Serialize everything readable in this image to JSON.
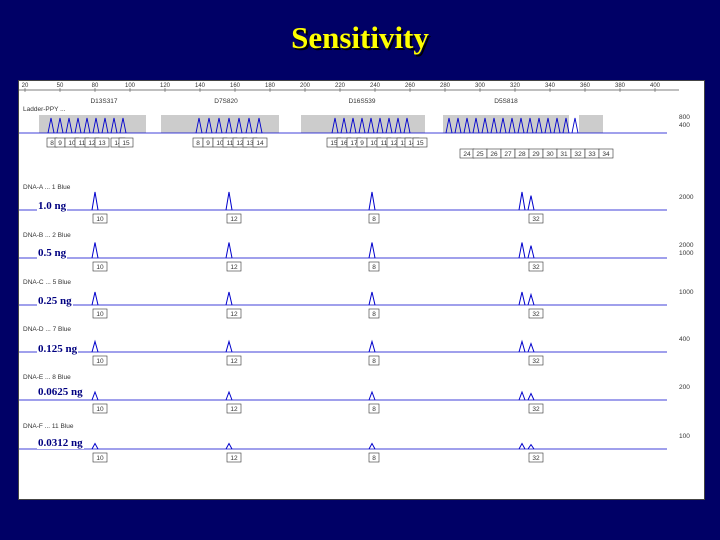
{
  "title": "Sensitivity",
  "colors": {
    "background": "#000066",
    "title": "#ffff00",
    "trace": "#0000cc",
    "ladder_box": "#cccccc"
  },
  "electropherogram": {
    "size_axis_ticks": [
      "20",
      "50",
      "80",
      "100",
      "120",
      "140",
      "160",
      "180",
      "200",
      "220",
      "240",
      "260",
      "280",
      "300",
      "320",
      "340",
      "360",
      "380",
      "400"
    ],
    "loci": [
      "D13S317",
      "D7S820",
      "D16S539",
      "D5S818"
    ],
    "ladder": {
      "header": "Ladder-PPY ...",
      "right_scale": [
        "800",
        "400"
      ],
      "alleles_row1": [
        "8",
        "9",
        "10",
        "11",
        "12",
        "13",
        "14",
        "15",
        "8",
        "9",
        "10",
        "11",
        "12",
        "13",
        "14",
        "15",
        "16",
        "17",
        "9",
        "10",
        "11",
        "12",
        "13",
        "14",
        "15"
      ],
      "alleles_row2": [
        "24",
        "25",
        "26",
        "27",
        "28",
        "29",
        "30",
        "31",
        "32",
        "33",
        "34"
      ]
    },
    "samples": [
      {
        "amount": "1.0 ng",
        "header": "DNA-A ... 1 Blue",
        "scale": [
          "2000"
        ],
        "alleles": [
          "10",
          "12",
          "8",
          "11",
          "32"
        ]
      },
      {
        "amount": "0.5 ng",
        "header": "DNA-B ... 2 Blue",
        "scale": [
          "2000",
          "1000"
        ],
        "alleles": [
          "10",
          "12",
          "8",
          "11",
          "32"
        ]
      },
      {
        "amount": "0.25 ng",
        "header": "DNA-C ... 5 Blue",
        "scale": [
          "1000"
        ],
        "alleles": [
          "10",
          "12",
          "8",
          "11",
          "32"
        ]
      },
      {
        "amount": "0.125 ng",
        "header": "DNA-D ... 7 Blue",
        "scale": [
          "400"
        ],
        "alleles": [
          "10",
          "12",
          "8",
          "11",
          "32"
        ]
      },
      {
        "amount": "0.0625 ng",
        "header": "DNA-E ... 8 Blue",
        "scale": [
          "200"
        ],
        "alleles": [
          "10",
          "12",
          "8",
          "11",
          "32"
        ]
      },
      {
        "amount": "0.0312 ng",
        "header": "DNA-F ... 11 Blue",
        "scale": [
          "100"
        ],
        "alleles": [
          "10",
          "12",
          "8",
          "11",
          "32"
        ]
      }
    ]
  }
}
